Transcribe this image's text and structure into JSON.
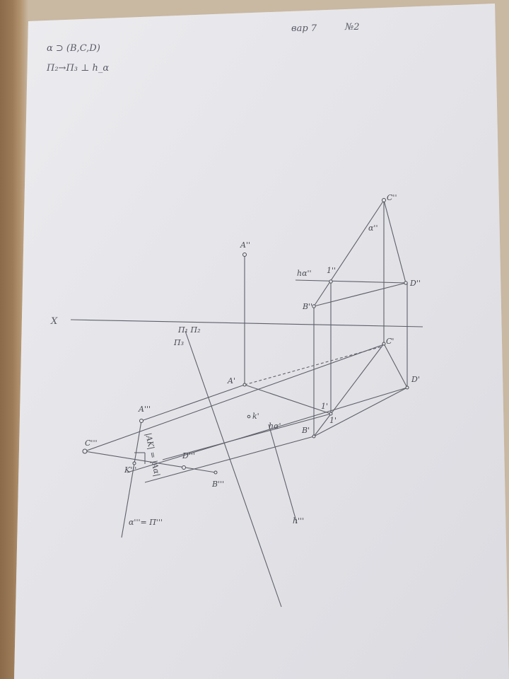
{
  "header": {
    "variant": "вар 7",
    "number": "№2"
  },
  "notes": {
    "line1": "α ⊃ (B,C,D)",
    "line2": "Π₂→Π₃ ⊥ h_α"
  },
  "axes": {
    "x": "X",
    "new_axis_top": "Π₁ Π₂",
    "new_axis_sub": "Π₃",
    "new_axis_bottom": "h'''"
  },
  "points_v": {
    "A": "A''",
    "C": "C''",
    "B": "B''",
    "D": "D''",
    "one": "1''",
    "h": "hα''",
    "alpha": "α''"
  },
  "points_h": {
    "A": "A'",
    "C": "C'",
    "B": "B'",
    "D": "D'",
    "one": "1'",
    "h": "hα'",
    "k": "k'",
    "one_small": "1'"
  },
  "points_p3": {
    "A": "A'''",
    "C": "C'''",
    "B": "B'''",
    "D": "D'''",
    "K": "K'''",
    "distance": "|AK| = |Aα|",
    "trace": "α'''= Π'''"
  }
}
